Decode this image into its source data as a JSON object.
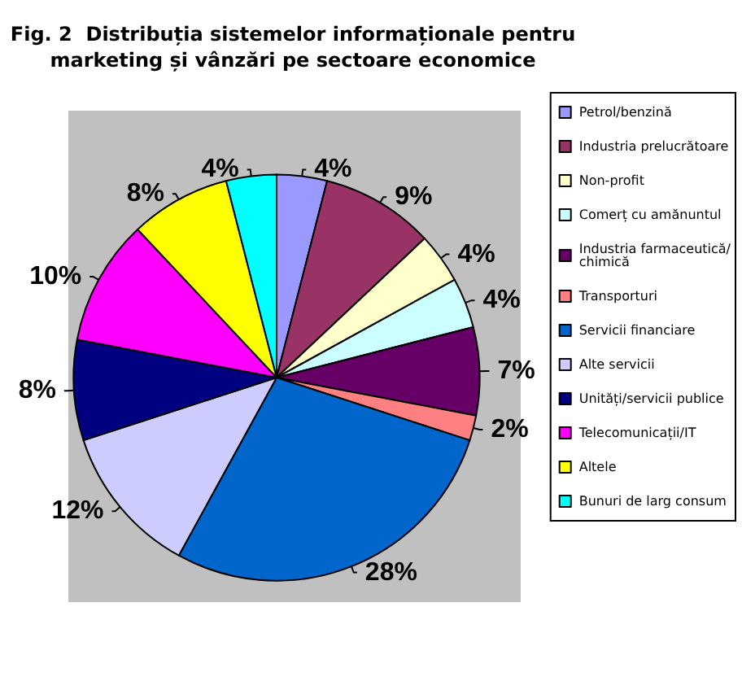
{
  "chart_data": {
    "type": "pie",
    "title": "Fig. 2  Distribuția sistemelor informaționale pentru\nmarketing și vânzări pe sectoare economice",
    "categories": [
      "Petrol/benzină",
      "Industria prelucrătoare",
      "Non-profit",
      "Comerț cu amănuntul",
      "Industria farmaceutică/chimică",
      "Transporturi",
      "Servicii financiare",
      "Alte servicii",
      "Unități/servicii publice",
      "Telecomunicații/IT",
      "Altele",
      "Bunuri de larg consum"
    ],
    "values": [
      4,
      9,
      4,
      4,
      7,
      2,
      28,
      12,
      8,
      10,
      8,
      4
    ],
    "colors": [
      "#9999ff",
      "#993366",
      "#ffffcc",
      "#ccffff",
      "#660066",
      "#ff8080",
      "#0066cc",
      "#ccccff",
      "#000080",
      "#ff00ff",
      "#ffff00",
      "#00ffff"
    ],
    "value_labels": [
      "4%",
      "9%",
      "4%",
      "4%",
      "7%",
      "2%",
      "28%",
      "12%",
      "8%",
      "10%",
      "8%",
      "4%"
    ],
    "legend": "right"
  }
}
